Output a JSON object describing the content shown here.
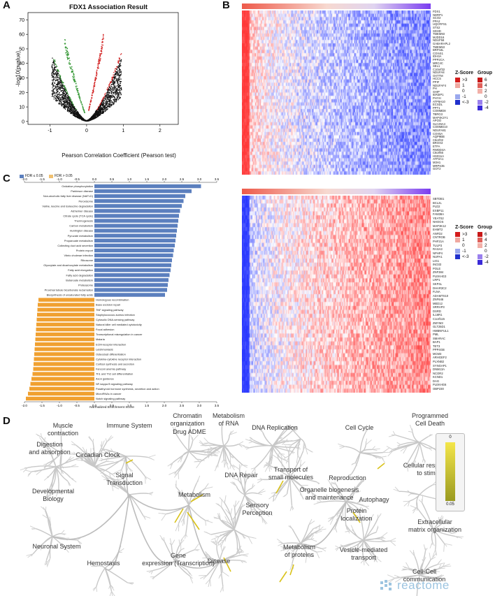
{
  "panels": {
    "a": "A",
    "b": "B",
    "c": "C",
    "d": "D"
  },
  "panelA": {
    "title": "FDX1 Association Result",
    "xlabel": "Pearson Correlation Coefficient (Pearson test)",
    "ylabel": "-log10(pvalue)",
    "xticks": [
      "-1",
      "0",
      "1",
      "2"
    ],
    "yticks": [
      "0",
      "10",
      "20",
      "30",
      "40",
      "50",
      "60",
      "70"
    ]
  },
  "panelB": {
    "top_genes": [
      "FDX1",
      "NDRP1",
      "SCO2",
      "PPA2",
      "UQCRFS1",
      "STS2",
      "SDHD",
      "TMEM93",
      "MJDD16",
      "NDUF58",
      "GABARAPL2",
      "TMEM53",
      "BRP44L",
      "COX4I1",
      "IDH3A",
      "PPP2CA",
      "MRC4C",
      "SEL1",
      "C10orf32",
      "NDUFA8",
      "OXTTM",
      "HCCS",
      "PPIF",
      "NDUFAF4",
      "PH",
      "SHIP",
      "IER3IP1",
      "PHYH",
      "ATP5H10",
      "ECSDL",
      "PPT1",
      "COMMD8",
      "TBRG3",
      "MAP4K2Y1",
      "APOO",
      "SLC25A4",
      "COMMD10",
      "NDUFA81",
      "COX5A",
      "AQP9BB",
      "C6orf32",
      "BROX3",
      "ETFA",
      "RWDD4A",
      "C6orf66",
      "HSD11A",
      "ATP2A1",
      "M3H1",
      "MRPS35",
      "GOT2"
    ],
    "bottom_genes": [
      "SBTDB1",
      "BCL2L",
      "PLD2",
      "EXBP11",
      "FAM38A",
      "YEATS2",
      "NHOOS",
      "MAP3K12",
      "EHMT2",
      "ANFD2",
      "CNTROB",
      "PHF21A",
      "TULP3",
      "RASA3",
      "NPHP4",
      "NUPA1",
      "LIG1",
      "INO33",
      "POLE",
      "ZNF384",
      "PLEKHG3",
      "LRP1",
      "SKP4L",
      "DHAR3C2",
      "FLNA",
      "ADAMTS10",
      "ZNF646",
      "MED12",
      "SRRAP3",
      "DSRD",
      "IL16R1",
      "C1orf115",
      "ZMYM3",
      "GLT25D1",
      "HMBNFUL1",
      "PML",
      "SMARAC",
      "BAP1",
      "TET3",
      "PPP4GB",
      "MCM3",
      "ARHGEF2",
      "PLXNB2",
      "SYNGAP1",
      "DNM13A",
      "NCOR2",
      "KCND1",
      "DAG",
      "PLEKHG6",
      "OBP230"
    ],
    "zscore_title": "Z-Score",
    "group_title": "Group",
    "zscore_levels": [
      ">3",
      "1",
      "0",
      "-1",
      "<-3"
    ],
    "group_levels": [
      "6",
      "4",
      "2",
      "0",
      "-2",
      "-4"
    ],
    "colors": {
      "high": "#e02020",
      "low": "#2030d0",
      "mid": "#ffffff"
    }
  },
  "panelC": {
    "legend_fdr_lt": "FDR ≤ 0.05",
    "legend_fdr_gt": "FDR > 0.05",
    "xlabel": "Normalized Enrichment Score",
    "xticks_top": [
      "-2.0",
      "-1.5",
      "-1.0",
      "-0.5",
      "0.0",
      "0.5",
      "1.0",
      "1.5",
      "2.0",
      "2.5",
      "3.0",
      "3.5"
    ],
    "xticks_bottom": [
      "-2.0",
      "-1.5",
      "-1.0",
      "-0.5",
      "0.0",
      "0.5",
      "1.0",
      "1.5",
      "2.0",
      "2.5",
      "3.0",
      "3.5"
    ],
    "colors": {
      "positive": "#5b7fbe",
      "negative": "#f0a030"
    }
  },
  "chart_data": {
    "type": "bar",
    "orientation": "horizontal",
    "title": "",
    "xlabel": "Normalized Enrichment Score",
    "xlim": [
      -2.0,
      3.5
    ],
    "series": [
      {
        "name": "FDR ≤ 0.05",
        "categories": [
          "Oxidative phosphorylation",
          "Parkinson disease",
          "Non-alcoholic fatty liver disease (NAFLD)",
          "Peroxisome",
          "Valine, leucine and isoleucine degradation",
          "Alzheimer disease",
          "Citrate cycle (TCA cycle)",
          "Thermogenesis",
          "Carbon metabolism",
          "Huntington disease",
          "Pyruvate metabolism",
          "Propanoate metabolism",
          "Collecting duct acid secretion",
          "Protein export",
          "Vibrio cholerae infection",
          "Ribosome",
          "Glyoxylate and dicarboxylate metabolism",
          "Fatty acid elongation",
          "Fatty acid degradation",
          "Butanoate metabolism",
          "Proteasome",
          "Proximal tubule bicarbonate reclamation",
          "Biosynthesis of unsaturated fatty acids"
        ],
        "values": [
          3.05,
          2.78,
          2.6,
          2.55,
          2.5,
          2.45,
          2.42,
          2.4,
          2.38,
          2.36,
          2.34,
          2.32,
          2.3,
          2.27,
          2.25,
          2.22,
          2.2,
          2.18,
          2.15,
          2.12,
          2.1,
          2.08,
          2.02
        ]
      },
      {
        "name": "FDR > 0.05",
        "categories": [
          "Homologous recombination",
          "Base excision repair",
          "TNF signaling pathway",
          "Staphylococcus aureus infection",
          "Cytosolic DNA-sensing pathway",
          "Natural killer cell mediated cytotoxicity",
          "Focal adhesion",
          "Transcriptional misregulation in cancer",
          "Malaria",
          "ECM-receptor interaction",
          "Leishmaniasis",
          "Osteoclast differentiation",
          "Cytokine-cytokine receptor interaction",
          "Cortisol synthesis and secretion",
          "Fanconi anemia pathway",
          "Th1 and Th2 cell differentiation",
          "Axon guidance",
          "NF-kappa B signaling pathway",
          "Parathyroid hormone synthesis, secretion and action",
          "MicroRNAs in cancer",
          "Notch signaling pathway"
        ],
        "values": [
          -1.6,
          -1.62,
          -1.63,
          -1.64,
          -1.65,
          -1.66,
          -1.67,
          -1.68,
          -1.69,
          -1.7,
          -1.71,
          -1.72,
          -1.73,
          -1.74,
          -1.75,
          -1.77,
          -1.8,
          -1.83,
          -1.86,
          -1.9,
          -1.96
        ]
      }
    ]
  },
  "panelD": {
    "labels": {
      "muscle": "Muscle\ncontraction",
      "immune": "Immune System",
      "chromatin": "Chromatin\norganization",
      "rna": "Metabolism\nof RNA",
      "drug": "Drug ADME",
      "dna_rep": "DNA Replication",
      "cell_cycle": "Cell Cycle",
      "pcd": "Programmed\nCell Death",
      "digestion": "Digestion\nand absorption",
      "circadian": "Circadian Clock",
      "transport": "Transport of\nsmall molecules",
      "dna_repair": "DNA Repair",
      "reproduction": "Reproduction",
      "stimuli": "Cellular responses\nto stimuli",
      "signal": "Signal\nTransduction",
      "metabolism": "Metabolism",
      "dev": "Developmental\nBiology",
      "organelle": "Organelle biogenesis\nand maintenance",
      "autophagy": "Autophagy",
      "sensory": "Sensory\nPerception",
      "protein_loc": "Protein\nlocalization",
      "ecm": "Extracellular\nmatrix organization",
      "neuronal": "Neuronal System",
      "met_proteins": "Metabolism\nof proteins",
      "vesicle": "Vesicle-mediated\ntransport",
      "hemostasis": "Hemostasis",
      "gene_expr": "Gene\nexpression (Transcription)",
      "disease": "Disease",
      "cellcell": "Cell-Cell\ncommunication"
    },
    "scale_top": "0",
    "scale_bottom": "0.05",
    "brand": "reactome"
  }
}
